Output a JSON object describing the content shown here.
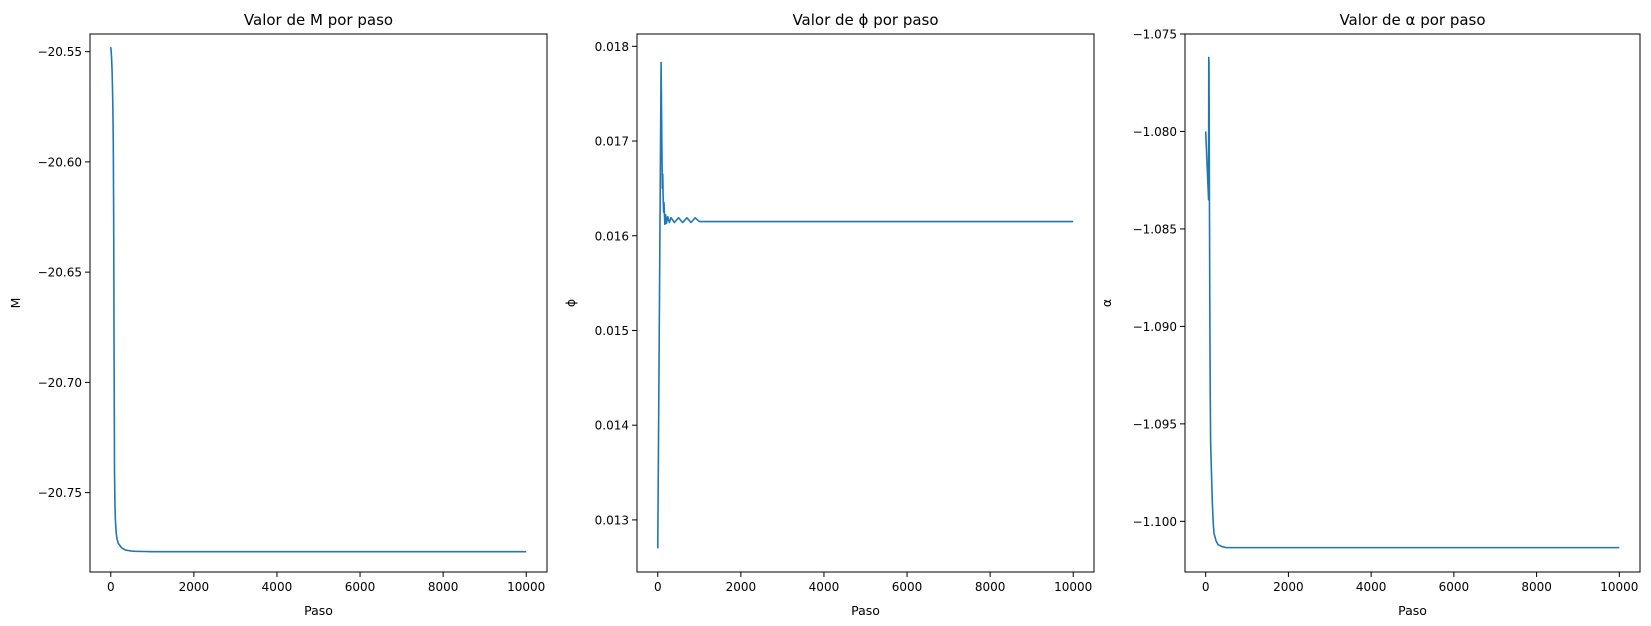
{
  "colors": {
    "line": "#1f77b4",
    "axes": "#000000",
    "background": "#ffffff"
  },
  "chart_data": [
    {
      "type": "line",
      "title": "Valor de M por paso",
      "xlabel": "Paso",
      "ylabel": "M",
      "xlim": [
        -500,
        10500
      ],
      "ylim": [
        -20.786,
        -20.542
      ],
      "xticks": [
        0,
        2000,
        4000,
        6000,
        8000,
        10000
      ],
      "xtick_labels": [
        "0",
        "2000",
        "4000",
        "6000",
        "8000",
        "10000"
      ],
      "yticks": [
        -20.55,
        -20.6,
        -20.65,
        -20.7,
        -20.75
      ],
      "ytick_labels": [
        "−20.55",
        "−20.60",
        "−20.65",
        "−20.70",
        "−20.75"
      ],
      "grid": false,
      "series": [
        {
          "x": [
            0,
            10,
            20,
            30,
            40,
            50,
            60,
            70,
            80,
            90,
            100,
            110,
            130,
            150,
            180,
            220,
            260,
            300,
            350,
            400,
            500,
            600,
            800,
            1000,
            1500,
            2000,
            3000,
            4000,
            5000,
            6000,
            7000,
            8000,
            9000,
            10000
          ],
          "y": [
            -20.548,
            -20.55,
            -20.553,
            -20.558,
            -20.565,
            -20.575,
            -20.59,
            -20.625,
            -20.69,
            -20.74,
            -20.755,
            -20.762,
            -20.768,
            -20.771,
            -20.773,
            -20.774,
            -20.775,
            -20.7755,
            -20.776,
            -20.7762,
            -20.7765,
            -20.7766,
            -20.7767,
            -20.7768,
            -20.7768,
            -20.7768,
            -20.7768,
            -20.7768,
            -20.7768,
            -20.7768,
            -20.7768,
            -20.7768,
            -20.7768,
            -20.7768
          ]
        }
      ]
    },
    {
      "type": "line",
      "title": "Valor de ϕ por paso",
      "xlabel": "Paso",
      "ylabel": "ϕ",
      "xlim": [
        -500,
        10500
      ],
      "ylim": [
        0.01245,
        0.01813
      ],
      "xticks": [
        0,
        2000,
        4000,
        6000,
        8000,
        10000
      ],
      "xtick_labels": [
        "0",
        "2000",
        "4000",
        "6000",
        "8000",
        "10000"
      ],
      "yticks": [
        0.013,
        0.014,
        0.015,
        0.016,
        0.017,
        0.018
      ],
      "ytick_labels": [
        "0.013",
        "0.014",
        "0.015",
        "0.016",
        "0.017",
        "0.018"
      ],
      "grid": false,
      "series": [
        {
          "x": [
            0,
            80,
            100,
            110,
            120,
            130,
            140,
            150,
            170,
            190,
            210,
            240,
            280,
            320,
            400,
            500,
            600,
            700,
            800,
            900,
            1000,
            1500,
            2000,
            4000,
            6000,
            8000,
            10000
          ],
          "y": [
            0.0127,
            0.01783,
            0.0169,
            0.0165,
            0.01665,
            0.0164,
            0.01625,
            0.01635,
            0.01612,
            0.01622,
            0.01613,
            0.0162,
            0.01614,
            0.01619,
            0.01614,
            0.01619,
            0.01614,
            0.01619,
            0.01614,
            0.01619,
            0.01615,
            0.01615,
            0.01615,
            0.01615,
            0.01615,
            0.01615,
            0.01615
          ]
        }
      ]
    },
    {
      "type": "line",
      "title": "Valor de α por paso",
      "xlabel": "Paso",
      "ylabel": "α",
      "xlim": [
        -500,
        10500
      ],
      "ylim": [
        -1.1026,
        -1.075
      ],
      "xticks": [
        0,
        2000,
        4000,
        6000,
        8000,
        10000
      ],
      "xtick_labels": [
        "0",
        "2000",
        "4000",
        "6000",
        "8000",
        "10000"
      ],
      "yticks": [
        -1.075,
        -1.08,
        -1.085,
        -1.09,
        -1.095,
        -1.1
      ],
      "ytick_labels": [
        "−1.075",
        "−1.080",
        "−1.085",
        "−1.090",
        "−1.095",
        "−1.100"
      ],
      "grid": false,
      "series": [
        {
          "x": [
            0,
            60,
            70,
            75,
            80,
            85,
            90,
            100,
            110,
            120,
            140,
            160,
            180,
            200,
            250,
            300,
            400,
            500,
            700,
            1000,
            2000,
            4000,
            6000,
            8000,
            10000
          ],
          "y": [
            -1.08,
            -1.083,
            -1.0835,
            -1.0762,
            -1.0765,
            -1.079,
            -1.083,
            -1.089,
            -1.0935,
            -1.096,
            -1.0975,
            -1.099,
            -1.1,
            -1.1006,
            -1.101,
            -1.1012,
            -1.1013,
            -1.10135,
            -1.10135,
            -1.10135,
            -1.10135,
            -1.10135,
            -1.10135,
            -1.10135,
            -1.10135
          ]
        }
      ]
    }
  ]
}
